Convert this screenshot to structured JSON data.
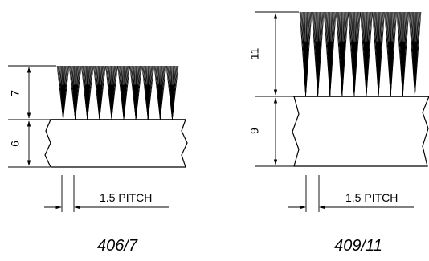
{
  "diagrams": [
    {
      "caption": "406/7",
      "bristle_height_label": "7",
      "base_height_label": "6",
      "pitch_label": "1.5 PITCH"
    },
    {
      "caption": "409/11",
      "bristle_height_label": "11",
      "base_height_label": "9",
      "pitch_label": "1.5 PITCH"
    }
  ],
  "colors": {
    "ink": "#000000",
    "background": "#ffffff"
  }
}
